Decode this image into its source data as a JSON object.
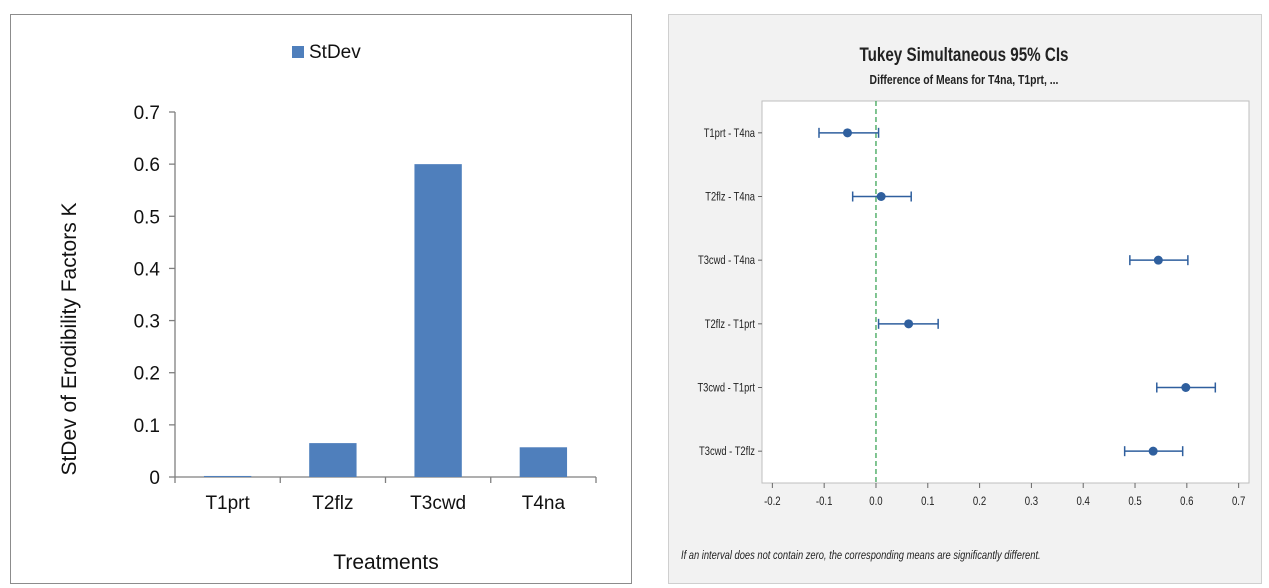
{
  "bar_chart": {
    "legend_label": "StDev",
    "ylabel": "StDev of Erodibility Factors K",
    "xlabel": "Treatments",
    "series_color": "#4f7fbc"
  },
  "interval_chart": {
    "title": "Tukey Simultaneous 95% CIs",
    "subtitle": "Difference of Means for T4na, T1prt, ...",
    "footnote": "If an interval does not contain zero, the corresponding means are significantly different.",
    "marker_color": "#2f5f9e",
    "reference_line_color": "#2e9e4a"
  },
  "chart_data": [
    {
      "type": "bar",
      "categories": [
        "T1prt",
        "T2flz",
        "T3cwd",
        "T4na"
      ],
      "series": [
        {
          "name": "StDev",
          "values": [
            0.002,
            0.065,
            0.6,
            0.057
          ]
        }
      ],
      "xlabel": "Treatments",
      "ylabel": "StDev of Erodibility Factors K",
      "ylim": [
        0,
        0.7
      ],
      "yticks": [
        0,
        0.1,
        0.2,
        0.3,
        0.4,
        0.5,
        0.6,
        0.7
      ],
      "ytick_labels": [
        "0",
        "0.1",
        "0.2",
        "0.3",
        "0.4",
        "0.5",
        "0.6",
        "0.7"
      ],
      "legend": "top-center",
      "grid": false
    },
    {
      "type": "scatter",
      "title": "Tukey Simultaneous 95% CIs",
      "subtitle": "Difference of Means for T4na, T1prt, ...",
      "comparisons": [
        {
          "label": "T1prt - T4na",
          "estimate": -0.055,
          "lower": -0.11,
          "upper": 0.005
        },
        {
          "label": "T2flz - T4na",
          "estimate": 0.01,
          "lower": -0.045,
          "upper": 0.068
        },
        {
          "label": "T3cwd - T4na",
          "estimate": 0.545,
          "lower": 0.49,
          "upper": 0.602
        },
        {
          "label": "T2flz - T1prt",
          "estimate": 0.063,
          "lower": 0.005,
          "upper": 0.12
        },
        {
          "label": "T3cwd - T1prt",
          "estimate": 0.598,
          "lower": 0.542,
          "upper": 0.655
        },
        {
          "label": "T3cwd - T2flz",
          "estimate": 0.535,
          "lower": 0.48,
          "upper": 0.592
        }
      ],
      "xlim": [
        -0.22,
        0.72
      ],
      "xticks": [
        -0.2,
        -0.1,
        0.0,
        0.1,
        0.2,
        0.3,
        0.4,
        0.5,
        0.6,
        0.7
      ],
      "xtick_labels": [
        "-0.2",
        "-0.1",
        "0.0",
        "0.1",
        "0.2",
        "0.3",
        "0.4",
        "0.5",
        "0.6",
        "0.7"
      ],
      "reference_line": 0,
      "footnote": "If an interval does not contain zero, the corresponding means are significantly different."
    }
  ]
}
